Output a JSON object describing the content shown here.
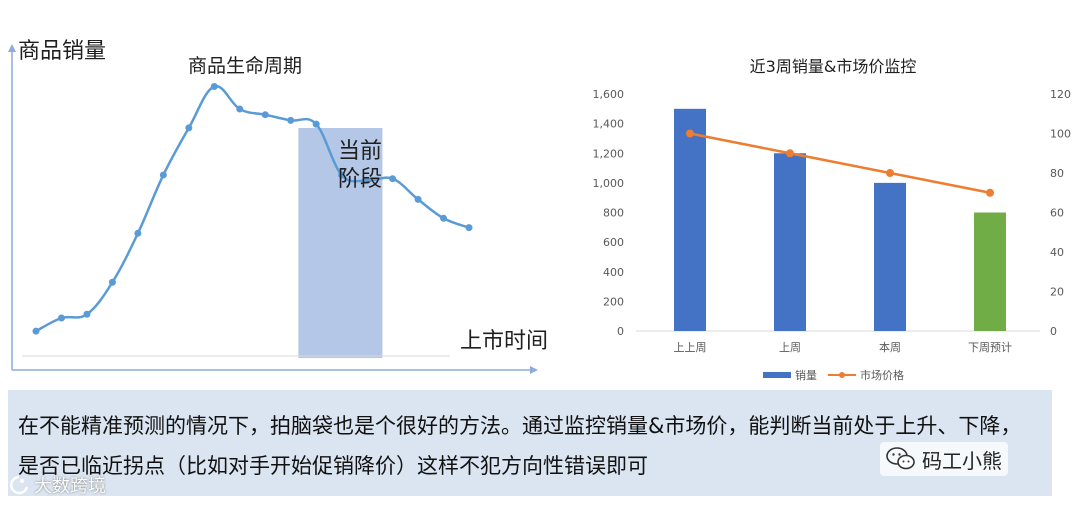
{
  "chart_data": [
    {
      "type": "line",
      "title": "商品生命周期",
      "ylabel": "商品销量",
      "xlabel": "上市时间",
      "values": [
        10,
        17,
        19,
        36,
        62,
        93,
        118,
        140,
        128,
        125,
        122,
        120,
        93,
        90,
        91,
        80,
        70,
        65
      ],
      "ylim": [
        0,
        170
      ],
      "highlight": {
        "label_line1": "当前",
        "label_line2": "阶段",
        "start_index": 10.3,
        "end_index": 13.6
      },
      "grid": false,
      "legend": "none",
      "colors": {
        "line": "#5b9bd5",
        "highlight": "#b4c7e7",
        "axis": "#8faadc"
      }
    },
    {
      "type": "bar",
      "title": "近3周销量&市场价监控",
      "categories": [
        "上上周",
        "上周",
        "本周",
        "下周预计"
      ],
      "series": [
        {
          "name": "销量",
          "kind": "bar",
          "axis": "left",
          "values": [
            1500,
            1200,
            1000,
            800
          ],
          "colors": [
            "#4472c4",
            "#4472c4",
            "#4472c4",
            "#70ad47"
          ]
        },
        {
          "name": "市场价格",
          "kind": "line",
          "axis": "right",
          "values": [
            100,
            90,
            80,
            70
          ],
          "color": "#ed7d31"
        }
      ],
      "ylim": [
        0,
        1600
      ],
      "y2lim": [
        0,
        120
      ],
      "yticks": [
        "0",
        "200",
        "400",
        "600",
        "800",
        "1,000",
        "1,200",
        "1,400",
        "1,600"
      ],
      "y2ticks": [
        "0",
        "20",
        "40",
        "60",
        "80",
        "100",
        "120"
      ],
      "legend": "bottom",
      "grid": false
    }
  ],
  "note": {
    "text": "在不能精准预测的情况下，拍脑袋也是个很好的方法。通过监控销量&市场价，能判断当前处于上升、下降，是否已临近拐点（比如对手开始促销降价）这样不犯方向性错误即可"
  },
  "wechat": {
    "icon": "wechat-icon",
    "label": "码工小熊"
  },
  "watermark": {
    "icon": "logo-icon",
    "label": "大数跨境"
  }
}
